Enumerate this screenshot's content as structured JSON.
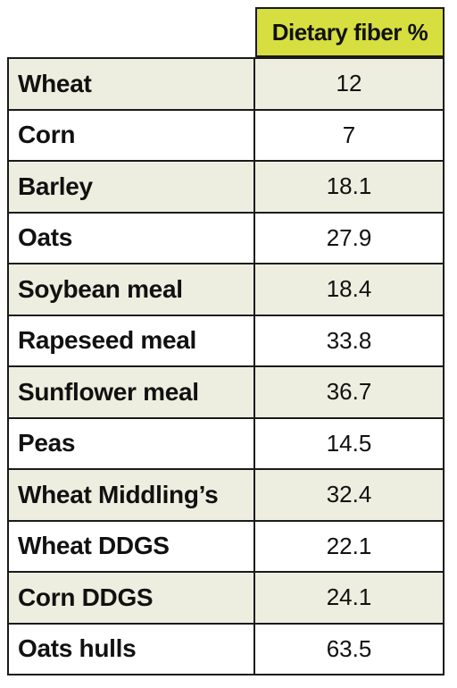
{
  "table": {
    "header": "Dietary fiber %",
    "rows": [
      {
        "name": "Wheat",
        "value": "12"
      },
      {
        "name": "Corn",
        "value": "7"
      },
      {
        "name": "Barley",
        "value": "18.1"
      },
      {
        "name": "Oats",
        "value": "27.9"
      },
      {
        "name": "Soybean meal",
        "value": "18.4"
      },
      {
        "name": "Rapeseed meal",
        "value": "33.8"
      },
      {
        "name": "Sunflower meal",
        "value": "36.7"
      },
      {
        "name": "Peas",
        "value": "14.5"
      },
      {
        "name": "Wheat Middling’s",
        "value": "32.4"
      },
      {
        "name": "Wheat DDGS",
        "value": "22.1"
      },
      {
        "name": "Corn DDGS",
        "value": "24.1"
      },
      {
        "name": "Oats hulls",
        "value": "63.5"
      }
    ]
  },
  "colors": {
    "header_bg": "#d6df3f",
    "row_shade": "#eeeee0",
    "border": "#1a1a1a"
  }
}
